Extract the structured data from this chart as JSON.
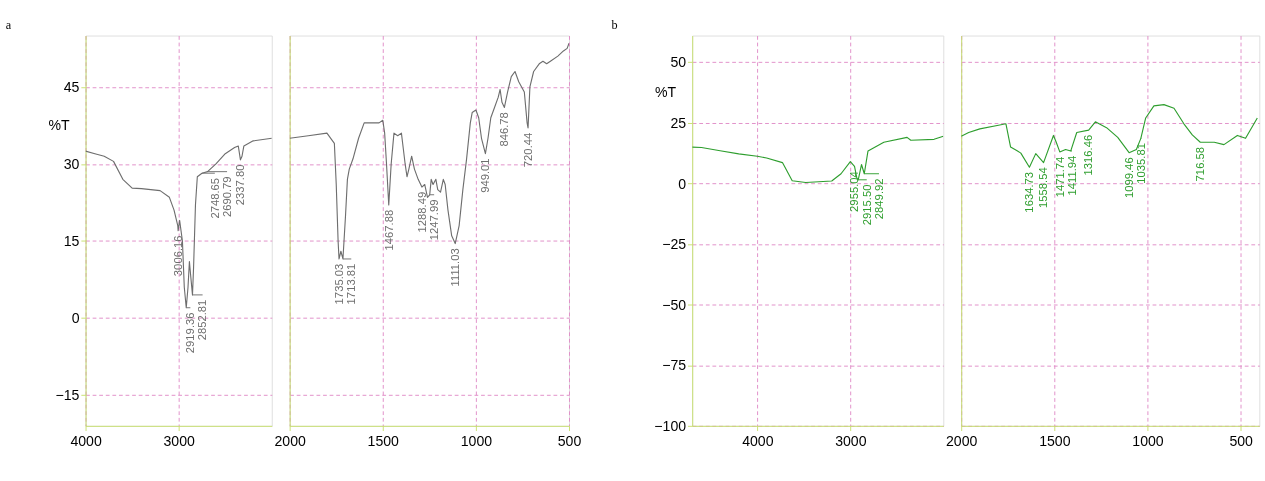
{
  "chart_data": [
    {
      "type": "line",
      "title": "a",
      "ylabel": "%T",
      "x": [
        4000,
        3900,
        3800,
        3700,
        3600,
        3500,
        3400,
        3200,
        3100,
        3050,
        3010,
        3006,
        2990,
        2960,
        2940,
        2919,
        2900,
        2885,
        2870,
        2852,
        2840,
        2820,
        2800,
        2750,
        2690,
        2600,
        2500,
        2400,
        2360,
        2337,
        2320,
        2300,
        2200,
        2000
      ],
      "series": [
        {
          "color": "#6e6e6e",
          "values": [
            32.5,
            32,
            31.5,
            30.5,
            27,
            25.3,
            25.2,
            24.8,
            23.5,
            21,
            18,
            17,
            19,
            15,
            6,
            2,
            6,
            11,
            8,
            4.5,
            10,
            22,
            27.5,
            28.2,
            28.5,
            30,
            32,
            33.2,
            33.5,
            30.8,
            31.5,
            33.5,
            34.5,
            35
          ]
        }
      ],
      "xlim": [
        4000,
        2000
      ],
      "ylim": [
        -21,
        55
      ],
      "xticks": [
        4000,
        3000
      ],
      "yticks": [
        -15,
        0,
        15,
        30,
        45
      ],
      "grid": true,
      "annotations": [
        {
          "text": "3006.16",
          "x": 3006,
          "y": 17
        },
        {
          "text": "2919.36",
          "x": 2919,
          "y": 2
        },
        {
          "text": "2852.81",
          "x": 2852,
          "y": 4.5
        },
        {
          "text": "2748.65",
          "x": 2750,
          "y": 28.2
        },
        {
          "text": "2690.79",
          "x": 2690,
          "y": 28.5
        },
        {
          "text": "2337.80",
          "x": 2337,
          "y": 30.8
        }
      ]
    },
    {
      "type": "line",
      "tick_labels": "x",
      "x": [
        2000,
        1900,
        1800,
        1760,
        1750,
        1740,
        1735,
        1725,
        1714,
        1700,
        1690,
        1680,
        1660,
        1630,
        1600,
        1560,
        1520,
        1500,
        1490,
        1480,
        1468,
        1455,
        1440,
        1420,
        1400,
        1390,
        1380,
        1370,
        1360,
        1345,
        1330,
        1310,
        1290,
        1275,
        1260,
        1248,
        1240,
        1230,
        1215,
        1205,
        1190,
        1175,
        1165,
        1150,
        1130,
        1111,
        1090,
        1070,
        1050,
        1030,
        1020,
        1000,
        985,
        970,
        949,
        935,
        920,
        900,
        880,
        870,
        860,
        847,
        830,
        810,
        790,
        770,
        740,
        725,
        720,
        710,
        690,
        660,
        640,
        620,
        600,
        560,
        530,
        510,
        500
      ],
      "series": [
        {
          "color": "#6e6e6e",
          "values": [
            35,
            35.5,
            36,
            34,
            26,
            15,
            11.5,
            13,
            11.5,
            20,
            27,
            29,
            31,
            35,
            38,
            38,
            38,
            38.5,
            36,
            30,
            22,
            30,
            36,
            35.5,
            36,
            33,
            30,
            27.5,
            29,
            31.5,
            29,
            27,
            25.5,
            26,
            23.5,
            24,
            27,
            26,
            27,
            25,
            24.5,
            27,
            26,
            21,
            16,
            14.5,
            18,
            25,
            31,
            38,
            40,
            40.5,
            39,
            35,
            32,
            35,
            39,
            41,
            43,
            44.5,
            42,
            41,
            44,
            47,
            48,
            46,
            44,
            38,
            37,
            45,
            48,
            49.5,
            50,
            49.5,
            50,
            51,
            52,
            52.5,
            53.5
          ]
        }
      ],
      "xlim": [
        2000,
        500
      ],
      "ylim": [
        -21,
        55
      ],
      "xticks": [
        2000,
        1500,
        1000,
        500
      ],
      "yticks": [
        -15,
        0,
        15,
        30,
        45
      ],
      "grid": true,
      "annotations": [
        {
          "text": "1735.03",
          "x": 1735,
          "y": 11.5
        },
        {
          "text": "1713.81",
          "x": 1714,
          "y": 11.5
        },
        {
          "text": "1467.88",
          "x": 1468,
          "y": 22
        },
        {
          "text": "1288.49",
          "x": 1290,
          "y": 25.5
        },
        {
          "text": "1247.99",
          "x": 1248,
          "y": 24
        },
        {
          "text": "1111.03",
          "x": 1111,
          "y": 14.5
        },
        {
          "text": "949.01",
          "x": 949,
          "y": 32
        },
        {
          "text": "846.78",
          "x": 847,
          "y": 41
        },
        {
          "text": "720.44",
          "x": 720,
          "y": 37
        }
      ]
    },
    {
      "type": "line",
      "title": "b",
      "ylabel": "%T",
      "x": [
        4700,
        4600,
        4400,
        4200,
        4000,
        3900,
        3730,
        3625,
        3480,
        3200,
        3100,
        3000,
        2955,
        2930,
        2915,
        2880,
        2850,
        2810,
        2640,
        2390,
        2350,
        2100,
        2000
      ],
      "series": [
        {
          "color": "#2e9e2e",
          "values": [
            15,
            14.8,
            13.5,
            12.2,
            11.2,
            10.5,
            8.6,
            1.1,
            0.4,
            1,
            4,
            9,
            7,
            2.2,
            1.5,
            7.8,
            4,
            13.4,
            17,
            19,
            17.8,
            18.2,
            19.5
          ]
        }
      ],
      "xlim": [
        4700,
        2000
      ],
      "ylim": [
        -100,
        61
      ],
      "xticks": [
        4000,
        3000
      ],
      "yticks": [
        -100,
        -75,
        -50,
        -25,
        0,
        25,
        50
      ],
      "grid": true,
      "annotations": [
        {
          "text": "2955.04",
          "x": 2955,
          "y": 7
        },
        {
          "text": "2915.50",
          "x": 2915,
          "y": 1.5
        },
        {
          "text": "2849.92",
          "x": 2850,
          "y": 4
        }
      ]
    },
    {
      "type": "line",
      "tick_labels": "x",
      "x": [
        2000,
        1960,
        1900,
        1800,
        1760,
        1735,
        1700,
        1680,
        1634,
        1600,
        1558,
        1505,
        1490,
        1471,
        1440,
        1412,
        1380,
        1316,
        1280,
        1220,
        1160,
        1099,
        1060,
        1036,
        1010,
        966,
        912,
        858,
        805,
        760,
        717,
        642,
        590,
        518,
        474,
        411
      ],
      "series": [
        {
          "color": "#2e9e2e",
          "values": [
            19.5,
            21,
            22.5,
            24,
            24.6,
            15,
            13.5,
            12.5,
            6.7,
            12.3,
            8.6,
            19.8,
            17,
            13,
            14,
            13.4,
            21,
            22,
            25.4,
            23,
            19,
            12.7,
            14,
            18.6,
            27,
            32,
            32.5,
            31,
            24.6,
            20,
            17,
            17,
            16,
            19.8,
            18.6,
            27
          ]
        }
      ],
      "xlim": [
        2000,
        400
      ],
      "ylim": [
        -100,
        61
      ],
      "xticks": [
        2000,
        1500,
        1000,
        500
      ],
      "yticks": [
        -100,
        -75,
        -50,
        -25,
        0,
        25,
        50
      ],
      "grid": true,
      "annotations": [
        {
          "text": "1634.73",
          "x": 1634,
          "y": 6.7
        },
        {
          "text": "1558.54",
          "x": 1558,
          "y": 8.6
        },
        {
          "text": "1471.74",
          "x": 1471,
          "y": 13
        },
        {
          "text": "1411.94",
          "x": 1412,
          "y": 13.4
        },
        {
          "text": "1316.46",
          "x": 1316,
          "y": 22
        },
        {
          "text": "1099.46",
          "x": 1099,
          "y": 12.7
        },
        {
          "text": "1035.81",
          "x": 1036,
          "y": 18.6
        },
        {
          "text": "716.58",
          "x": 717,
          "y": 17
        }
      ]
    }
  ]
}
